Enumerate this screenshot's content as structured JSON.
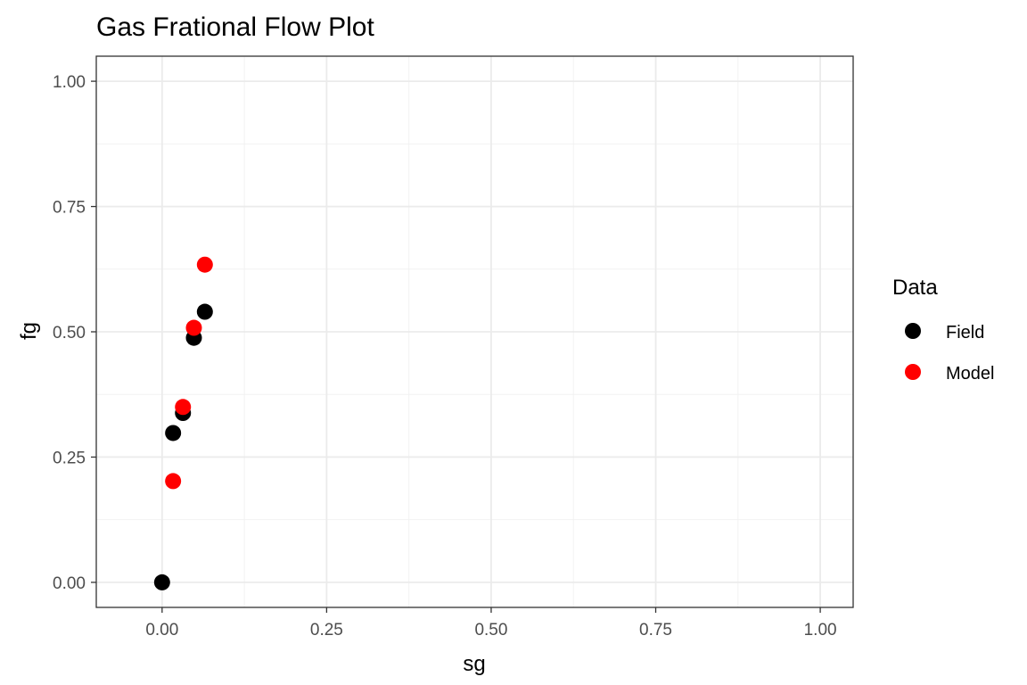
{
  "chart_data": {
    "type": "scatter",
    "title": "Gas Frational Flow Plot",
    "xlabel": "sg",
    "ylabel": "fg",
    "xlim": [
      -0.1,
      1.05
    ],
    "ylim": [
      -0.05,
      1.05
    ],
    "x_ticks": [
      0.0,
      0.25,
      0.5,
      0.75,
      1.0
    ],
    "x_tick_labels": [
      "0.00",
      "0.25",
      "0.50",
      "0.75",
      "1.00"
    ],
    "y_ticks": [
      0.0,
      0.25,
      0.5,
      0.75,
      1.0
    ],
    "y_tick_labels": [
      "0.00",
      "0.25",
      "0.50",
      "0.75",
      "1.00"
    ],
    "grid": true,
    "legend_title": "Data",
    "legend_position": "right",
    "series": [
      {
        "name": "Field",
        "color": "#000000",
        "points": [
          {
            "x": 0.0,
            "y": 0.0
          },
          {
            "x": 0.0167,
            "y": 0.298
          },
          {
            "x": 0.0317,
            "y": 0.338
          },
          {
            "x": 0.0483,
            "y": 0.488
          },
          {
            "x": 0.065,
            "y": 0.54
          }
        ]
      },
      {
        "name": "Model",
        "color": "#ff0000",
        "points": [
          {
            "x": 0.0167,
            "y": 0.202
          },
          {
            "x": 0.0317,
            "y": 0.35
          },
          {
            "x": 0.0483,
            "y": 0.508
          },
          {
            "x": 0.065,
            "y": 0.634
          }
        ]
      }
    ]
  }
}
